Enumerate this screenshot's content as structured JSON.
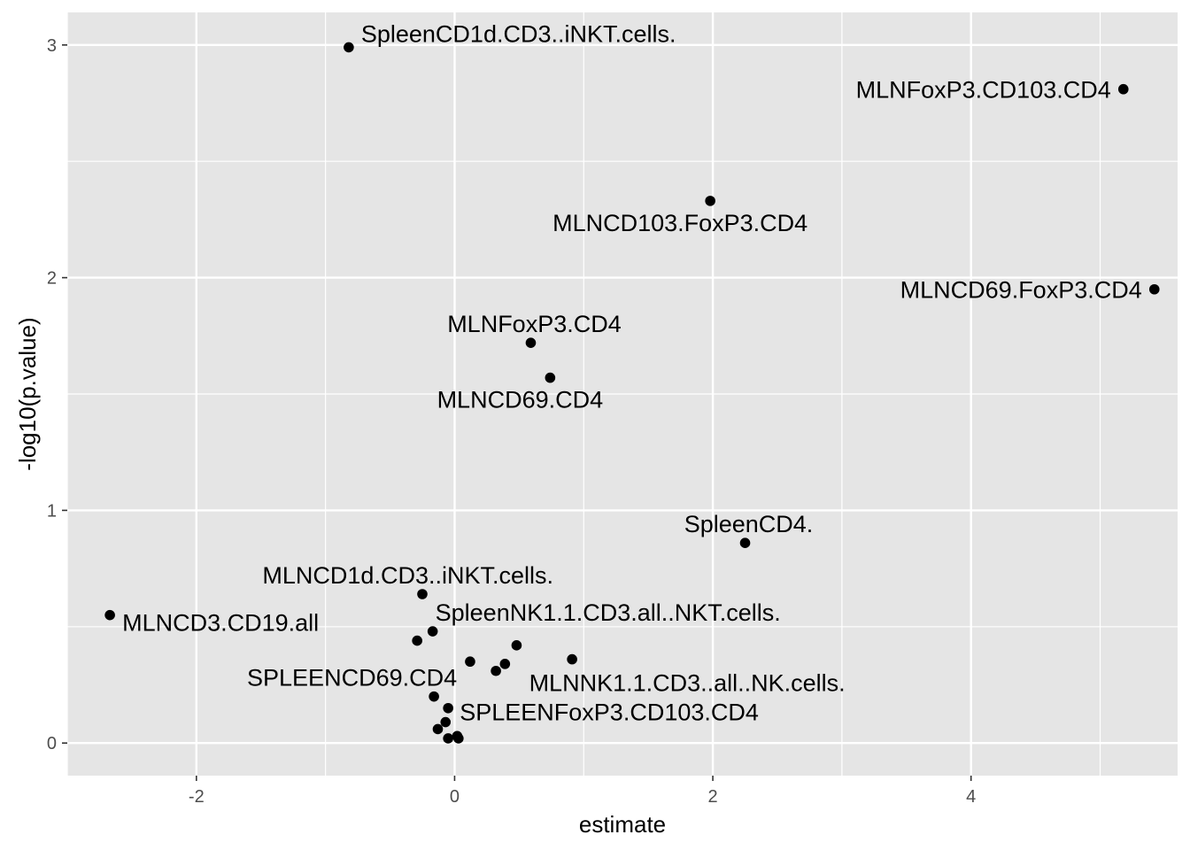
{
  "chart_data": {
    "type": "scatter",
    "xlabel": "estimate",
    "ylabel": "-log10(p.value)",
    "xlim": [
      -3.0,
      5.6
    ],
    "ylim": [
      -0.14,
      3.14
    ],
    "x_ticks": [
      -2,
      0,
      2,
      4
    ],
    "y_ticks": [
      0,
      1,
      2,
      3
    ],
    "grid": true,
    "colors": {
      "panel_background": "#e5e5e5",
      "grid": "#ffffff",
      "points": "#000000"
    },
    "points": [
      {
        "x": -0.82,
        "y": 2.99,
        "label": "SpleenCD1d.CD3..iNKT.cells.",
        "label_pos": "right"
      },
      {
        "x": 5.18,
        "y": 2.81,
        "label": "MLNFoxP3.CD103.CD4",
        "label_pos": "left"
      },
      {
        "x": 1.98,
        "y": 2.33,
        "label": "MLNCD103.FoxP3.CD4",
        "label_pos": "below-left"
      },
      {
        "x": 5.42,
        "y": 1.95,
        "label": "MLNCD69.FoxP3.CD4",
        "label_pos": "left"
      },
      {
        "x": 0.59,
        "y": 1.72,
        "label": "MLNFoxP3.CD4",
        "label_pos": "above"
      },
      {
        "x": 0.74,
        "y": 1.57,
        "label": "MLNCD69.CD4",
        "label_pos": "below-left"
      },
      {
        "x": 2.25,
        "y": 0.86,
        "label": "SpleenCD4.",
        "label_pos": "above"
      },
      {
        "x": -0.25,
        "y": 0.64,
        "label": "MLNCD1d.CD3..iNKT.cells.",
        "label_pos": "above-left"
      },
      {
        "x": -2.67,
        "y": 0.55,
        "label": "MLNCD3.CD19.all",
        "label_pos": "right"
      },
      {
        "x": -0.17,
        "y": 0.48,
        "label": "SpleenNK1.1.CD3.all..NKT.cells.",
        "label_pos": "above-right"
      },
      {
        "x": -0.29,
        "y": 0.44,
        "label": "",
        "label_pos": ""
      },
      {
        "x": 0.48,
        "y": 0.42,
        "label": "",
        "label_pos": ""
      },
      {
        "x": 0.91,
        "y": 0.36,
        "label": "MLNNK1.1.CD3..all..NK.cells.",
        "label_pos": "below"
      },
      {
        "x": 0.12,
        "y": 0.35,
        "label": "",
        "label_pos": ""
      },
      {
        "x": 0.39,
        "y": 0.34,
        "label": "",
        "label_pos": ""
      },
      {
        "x": 0.32,
        "y": 0.31,
        "label": "",
        "label_pos": ""
      },
      {
        "x": -0.16,
        "y": 0.2,
        "label": "SPLEENCD69.CD4",
        "label_pos": "above-left"
      },
      {
        "x": -0.05,
        "y": 0.15,
        "label": "",
        "label_pos": ""
      },
      {
        "x": -0.07,
        "y": 0.09,
        "label": "SPLEENFoxP3.CD103.CD4",
        "label_pos": "right"
      },
      {
        "x": -0.13,
        "y": 0.06,
        "label": "",
        "label_pos": ""
      },
      {
        "x": 0.02,
        "y": 0.03,
        "label": "",
        "label_pos": ""
      },
      {
        "x": 0.03,
        "y": 0.02,
        "label": "",
        "label_pos": ""
      },
      {
        "x": -0.05,
        "y": 0.02,
        "label": "",
        "label_pos": ""
      }
    ]
  }
}
